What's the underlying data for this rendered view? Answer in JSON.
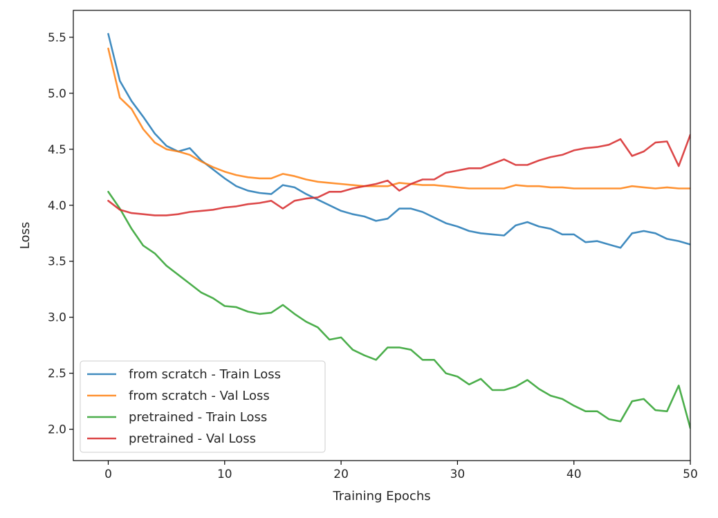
{
  "chart_data": {
    "type": "line",
    "xlabel": "Training Epochs",
    "ylabel": "Loss",
    "xlim": [
      -3,
      50
    ],
    "ylim": [
      1.72,
      5.74
    ],
    "x_ticks": [
      0,
      10,
      20,
      30,
      40,
      50
    ],
    "y_ticks": [
      2.0,
      2.5,
      3.0,
      3.5,
      4.0,
      4.5,
      5.0,
      5.5
    ],
    "x_tick_labels": [
      "0",
      "10",
      "20",
      "30",
      "40",
      "50"
    ],
    "y_tick_labels": [
      "2.0",
      "2.5",
      "3.0",
      "3.5",
      "4.0",
      "4.5",
      "5.0",
      "5.5"
    ],
    "grid": false,
    "legend_position": "lower-left",
    "x": [
      0,
      1,
      2,
      3,
      4,
      5,
      6,
      7,
      8,
      9,
      10,
      11,
      12,
      13,
      14,
      15,
      16,
      17,
      18,
      19,
      20,
      21,
      22,
      23,
      24,
      25,
      26,
      27,
      28,
      29,
      30,
      31,
      32,
      33,
      34,
      35,
      36,
      37,
      38,
      39,
      40,
      41,
      42,
      43,
      44,
      45,
      46,
      47,
      48,
      49,
      50
    ],
    "series": [
      {
        "name": "from scratch - Train Loss",
        "color": "#1f77b4",
        "values": [
          5.53,
          5.11,
          4.93,
          4.79,
          4.64,
          4.53,
          4.48,
          4.51,
          4.4,
          4.32,
          4.24,
          4.17,
          4.13,
          4.11,
          4.1,
          4.18,
          4.16,
          4.1,
          4.05,
          4.0,
          3.95,
          3.92,
          3.9,
          3.86,
          3.88,
          3.97,
          3.97,
          3.94,
          3.89,
          3.84,
          3.81,
          3.77,
          3.75,
          3.74,
          3.73,
          3.82,
          3.85,
          3.81,
          3.79,
          3.74,
          3.74,
          3.67,
          3.68,
          3.65,
          3.62,
          3.75,
          3.77,
          3.75,
          3.7,
          3.68,
          3.65
        ]
      },
      {
        "name": "from scratch - Val Loss",
        "color": "#ff7f0e",
        "values": [
          5.4,
          4.96,
          4.86,
          4.68,
          4.56,
          4.5,
          4.48,
          4.45,
          4.39,
          4.34,
          4.3,
          4.27,
          4.25,
          4.24,
          4.24,
          4.28,
          4.26,
          4.23,
          4.21,
          4.2,
          4.19,
          4.18,
          4.17,
          4.17,
          4.17,
          4.2,
          4.19,
          4.18,
          4.18,
          4.17,
          4.16,
          4.15,
          4.15,
          4.15,
          4.15,
          4.18,
          4.17,
          4.17,
          4.16,
          4.16,
          4.15,
          4.15,
          4.15,
          4.15,
          4.15,
          4.17,
          4.16,
          4.15,
          4.16,
          4.15,
          4.15
        ]
      },
      {
        "name": "pretrained - Train Loss",
        "color": "#2ca02c",
        "values": [
          4.12,
          3.97,
          3.79,
          3.64,
          3.57,
          3.46,
          3.38,
          3.3,
          3.22,
          3.17,
          3.1,
          3.09,
          3.05,
          3.03,
          3.04,
          3.11,
          3.03,
          2.96,
          2.91,
          2.8,
          2.82,
          2.71,
          2.66,
          2.62,
          2.73,
          2.73,
          2.71,
          2.62,
          2.62,
          2.5,
          2.47,
          2.4,
          2.45,
          2.35,
          2.35,
          2.38,
          2.44,
          2.36,
          2.3,
          2.27,
          2.21,
          2.16,
          2.16,
          2.09,
          2.07,
          2.25,
          2.27,
          2.17,
          2.16,
          2.39,
          2.01
        ]
      },
      {
        "name": "pretrained - Val Loss",
        "color": "#d62728",
        "values": [
          4.04,
          3.96,
          3.93,
          3.92,
          3.91,
          3.91,
          3.92,
          3.94,
          3.95,
          3.96,
          3.98,
          3.99,
          4.01,
          4.02,
          4.04,
          3.97,
          4.04,
          4.06,
          4.07,
          4.12,
          4.12,
          4.15,
          4.17,
          4.19,
          4.22,
          4.13,
          4.19,
          4.23,
          4.23,
          4.29,
          4.31,
          4.33,
          4.33,
          4.37,
          4.41,
          4.36,
          4.36,
          4.4,
          4.43,
          4.45,
          4.49,
          4.51,
          4.52,
          4.54,
          4.59,
          4.44,
          4.48,
          4.56,
          4.57,
          4.35,
          4.63
        ]
      }
    ]
  }
}
